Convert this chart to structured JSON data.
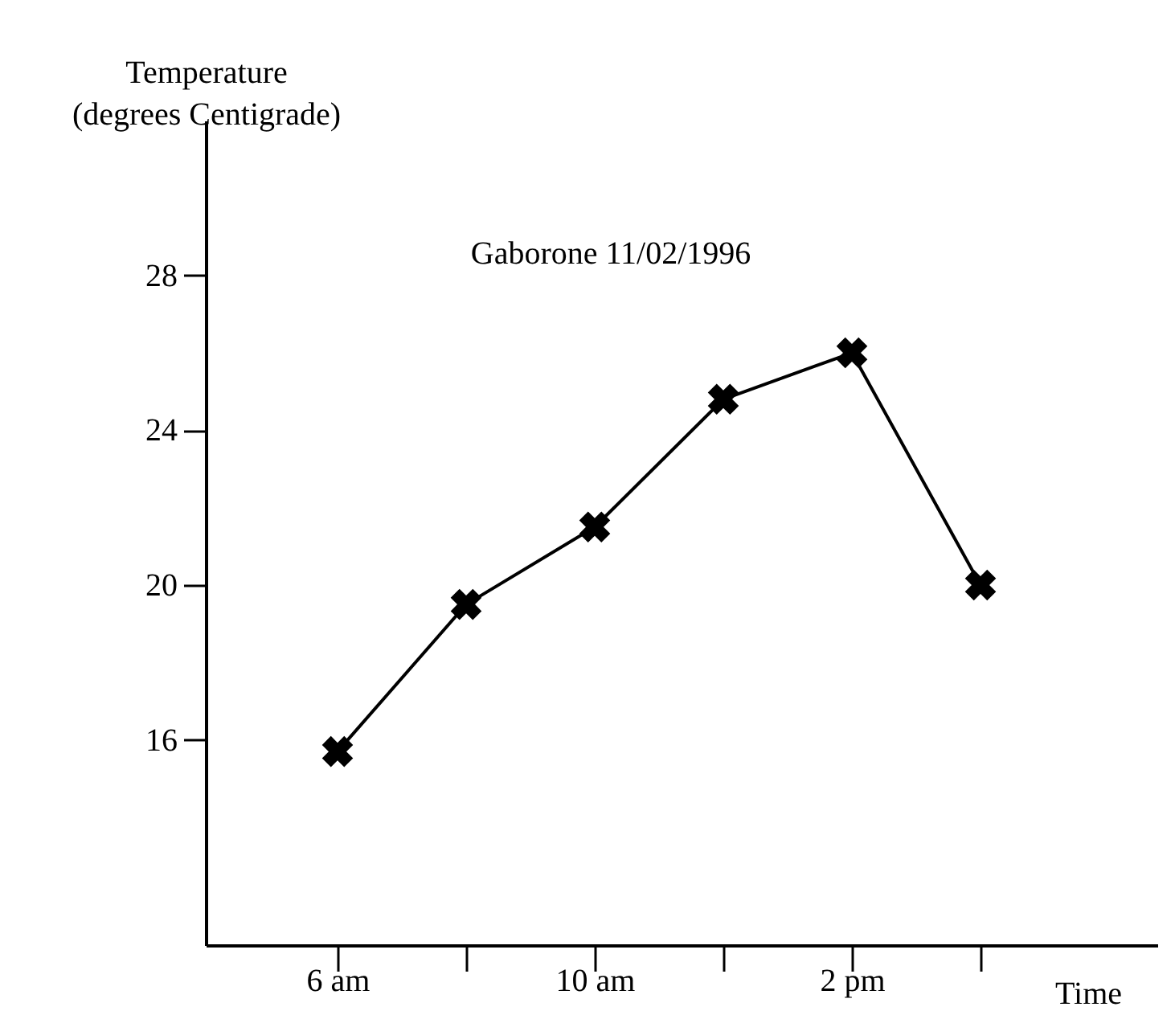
{
  "chart_data": {
    "type": "line",
    "title": "Gaborone 11/02/1996",
    "xlabel": "Time",
    "ylabel": "Temperature (degrees Centigrade)",
    "categories": [
      "6 am",
      null,
      "10 am",
      null,
      "2 pm",
      null
    ],
    "series": [
      {
        "color": "#000000",
        "values": [
          15.7,
          19.5,
          21.5,
          24.8,
          26,
          20
        ]
      }
    ],
    "ylim": [
      10.7,
      32
    ],
    "yticks": [
      16,
      20,
      24,
      28
    ],
    "marker": "cross",
    "grid": false
  }
}
